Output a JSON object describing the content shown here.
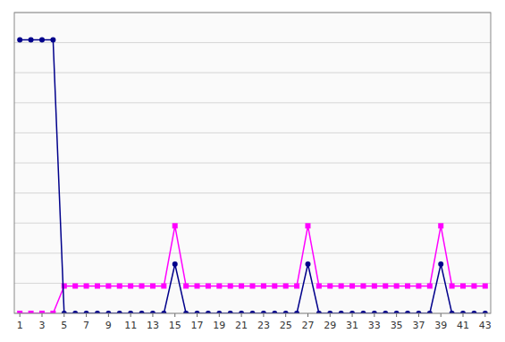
{
  "chart_data": {
    "type": "line",
    "x": [
      1,
      2,
      3,
      4,
      5,
      6,
      7,
      8,
      9,
      10,
      11,
      12,
      13,
      14,
      15,
      16,
      17,
      18,
      19,
      20,
      21,
      22,
      23,
      24,
      25,
      26,
      27,
      28,
      29,
      30,
      31,
      32,
      33,
      34,
      35,
      36,
      37,
      38,
      39,
      40,
      41,
      42,
      43
    ],
    "series": [
      {
        "color": "#FF00FF",
        "marker": "square",
        "line_style": "solid",
        "values": [
          0,
          0,
          0,
          0,
          10,
          10,
          10,
          10,
          10,
          10,
          10,
          10,
          10,
          10,
          32,
          10,
          10,
          10,
          10,
          10,
          10,
          10,
          10,
          10,
          10,
          10,
          32,
          10,
          10,
          10,
          10,
          10,
          10,
          10,
          10,
          10,
          10,
          10,
          32,
          10,
          10,
          10,
          10
        ]
      },
      {
        "color": "#00008B",
        "marker": "circle",
        "line_style": "solid",
        "values": [
          100,
          100,
          100,
          100,
          0,
          0,
          0,
          0,
          0,
          0,
          0,
          0,
          0,
          0,
          18,
          0,
          0,
          0,
          0,
          0,
          0,
          0,
          0,
          0,
          0,
          0,
          18,
          0,
          0,
          0,
          0,
          0,
          0,
          0,
          0,
          0,
          0,
          0,
          18,
          0,
          0,
          0,
          0
        ]
      }
    ],
    "xlim": [
      0.5,
      43.5
    ],
    "ylim": [
      0,
      110
    ],
    "xticks": [
      1,
      3,
      5,
      7,
      9,
      11,
      13,
      15,
      17,
      19,
      21,
      23,
      25,
      27,
      29,
      31,
      33,
      35,
      37,
      39,
      41,
      43
    ],
    "yticks": [
      0,
      11,
      22,
      33,
      44,
      55,
      66,
      77,
      88,
      99,
      110
    ],
    "grid": true,
    "tick_labels": "x"
  }
}
